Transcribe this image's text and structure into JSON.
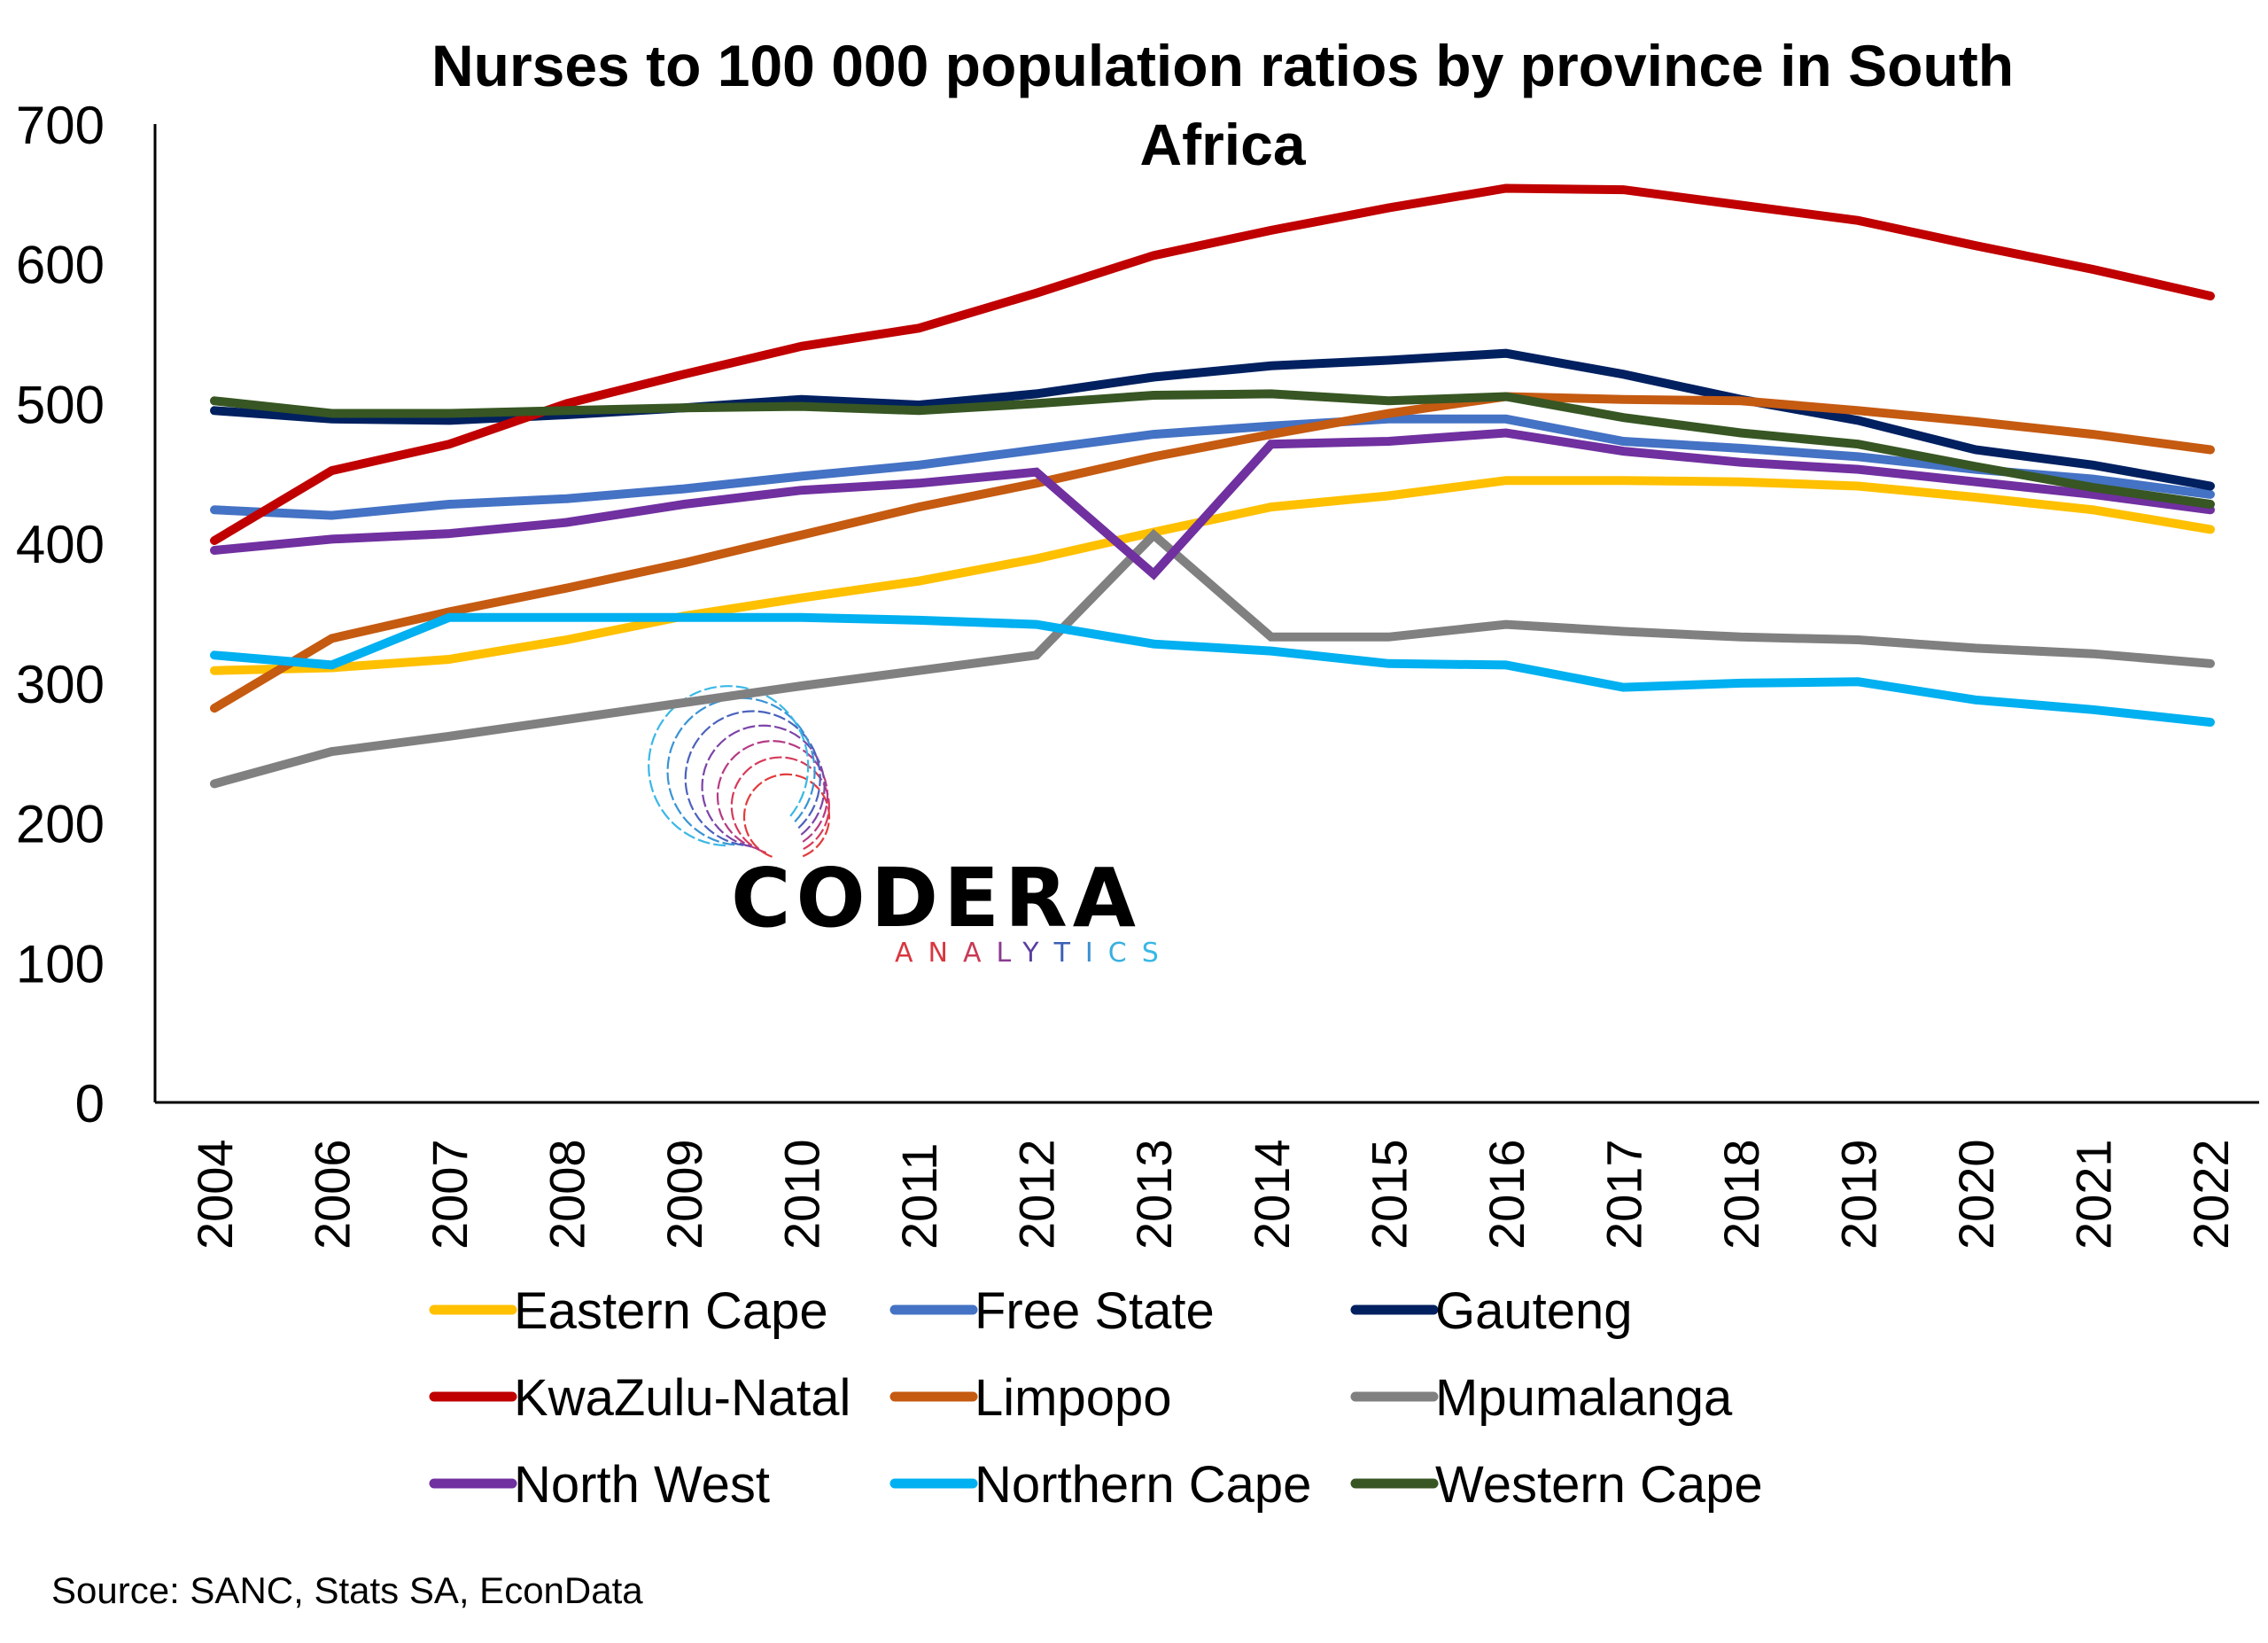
{
  "chart_data": {
    "type": "line",
    "title": "Nurses to 100 000 population ratios by province in South Africa",
    "title_lines": [
      "Nurses to 100 000 population ratios by province in South",
      "Africa"
    ],
    "xlabel": "",
    "ylabel": "",
    "ylim": [
      0,
      700
    ],
    "yticks": [
      "0",
      "100",
      "200",
      "300",
      "400",
      "500",
      "600",
      "700"
    ],
    "ytick_values": [
      0,
      100,
      200,
      300,
      400,
      500,
      600,
      700
    ],
    "grid": false,
    "legend_position": "bottom",
    "categories": [
      "2004",
      "2006",
      "2007",
      "2008",
      "2009",
      "2010",
      "2011",
      "2012",
      "2013",
      "2014",
      "2015",
      "2016",
      "2017",
      "2018",
      "2019",
      "2020",
      "2021",
      "2022"
    ],
    "series": [
      {
        "name": "Eastern Cape",
        "color": "#FFC000",
        "values": [
          309,
          311,
          317,
          331,
          348,
          361,
          373,
          389,
          408,
          426,
          434,
          445,
          445,
          444,
          441,
          433,
          424,
          410
        ]
      },
      {
        "name": "Free State",
        "color": "#4472C4",
        "values": [
          424,
          420,
          428,
          432,
          439,
          448,
          456,
          467,
          478,
          484,
          489,
          489,
          473,
          468,
          462,
          453,
          446,
          435
        ]
      },
      {
        "name": "Gauteng",
        "color": "#002060",
        "values": [
          495,
          489,
          488,
          492,
          497,
          503,
          499,
          507,
          519,
          527,
          531,
          536,
          521,
          503,
          488,
          467,
          456,
          441
        ]
      },
      {
        "name": "KwaZulu-Natal",
        "color": "#C00000",
        "values": [
          402,
          452,
          471,
          500,
          521,
          541,
          554,
          579,
          606,
          624,
          640,
          654,
          653,
          642,
          631,
          613,
          596,
          577
        ]
      },
      {
        "name": "Limpopo",
        "color": "#C55A11",
        "values": [
          282,
          332,
          351,
          368,
          386,
          406,
          426,
          443,
          462,
          478,
          493,
          505,
          503,
          502,
          495,
          487,
          478,
          467
        ]
      },
      {
        "name": "Mpumalanga",
        "color": "#808080",
        "values": [
          228,
          251,
          262,
          274,
          286,
          298,
          309,
          320,
          406,
          333,
          333,
          342,
          337,
          333,
          331,
          325,
          321,
          314
        ]
      },
      {
        "name": "North West",
        "color": "#7030A0",
        "values": [
          395,
          403,
          407,
          415,
          428,
          438,
          443,
          451,
          378,
          471,
          473,
          479,
          466,
          458,
          453,
          444,
          435,
          424
        ]
      },
      {
        "name": "Northern Cape",
        "color": "#00B0F0",
        "values": [
          320,
          313,
          347,
          347,
          347,
          347,
          345,
          342,
          328,
          323,
          314,
          313,
          297,
          300,
          301,
          288,
          281,
          272
        ]
      },
      {
        "name": "Western Cape",
        "color": "#375623",
        "values": [
          502,
          493,
          493,
          495,
          497,
          498,
          495,
          500,
          506,
          507,
          502,
          505,
          490,
          479,
          471,
          455,
          440,
          428
        ]
      }
    ],
    "source": "Source: SANC, Stats SA, EconData"
  },
  "logo": {
    "name": "CODERA",
    "tagline": "ANALYTICS"
  }
}
